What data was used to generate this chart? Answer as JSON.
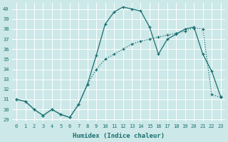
{
  "xlabel": "Humidex (Indice chaleur)",
  "bg_color": "#cce8e8",
  "line_color": "#1a6e6e",
  "xlim": [
    -0.5,
    23.5
  ],
  "ylim": [
    28.8,
    40.6
  ],
  "yticks": [
    29,
    30,
    31,
    32,
    33,
    34,
    35,
    36,
    37,
    38,
    39,
    40
  ],
  "xticks": [
    0,
    1,
    2,
    3,
    4,
    5,
    6,
    7,
    8,
    9,
    10,
    11,
    12,
    13,
    14,
    15,
    16,
    17,
    18,
    19,
    20,
    21,
    22,
    23
  ],
  "series_solid_x": [
    0,
    1,
    2,
    3,
    4,
    5,
    6,
    7,
    8,
    9,
    10,
    11,
    12,
    13,
    14,
    15,
    16,
    17,
    18,
    19,
    20,
    21,
    22,
    23
  ],
  "series_solid_y": [
    31.0,
    30.8,
    30.0,
    29.4,
    30.0,
    29.5,
    29.2,
    30.5,
    32.5,
    35.4,
    38.5,
    39.7,
    40.2,
    40.0,
    39.8,
    38.2,
    35.5,
    37.0,
    37.5,
    38.0,
    38.2,
    35.5,
    33.8,
    31.3
  ],
  "series_dotted_x": [
    0,
    1,
    2,
    3,
    4,
    5,
    6,
    7,
    8,
    9,
    10,
    11,
    12,
    13,
    14,
    15,
    16,
    17,
    18,
    19,
    20,
    21,
    22,
    23
  ],
  "series_dotted_y": [
    31.0,
    30.8,
    30.0,
    29.4,
    30.0,
    29.5,
    29.2,
    30.5,
    32.5,
    34.0,
    35.0,
    35.5,
    36.0,
    36.5,
    36.8,
    37.0,
    37.2,
    37.4,
    37.6,
    37.8,
    38.1,
    38.0,
    31.5,
    31.2
  ]
}
